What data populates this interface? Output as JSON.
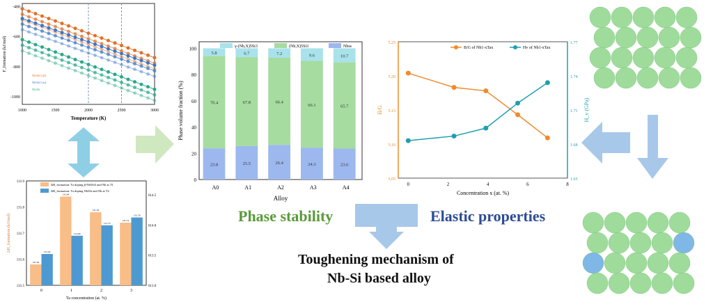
{
  "colors": {
    "green": "#5a9a3a",
    "blue": "#2e4c94",
    "arrow": "#a8c8ea",
    "atom": "#9fdc9c",
    "atom_blue": "#7fb7e6"
  },
  "labels": {
    "phase_stability": "Phase stability",
    "elastic_properties": "Elastic properties",
    "conclusion_line1": "Toughening mechanism of",
    "conclusion_line2": "Nb-Si based alloy"
  },
  "chart_data": [
    {
      "id": "formation-energy",
      "type": "line",
      "xlabel": "Temperature (K)",
      "ylabel": "F_formation (kJ/mol)",
      "xlim": [
        1000,
        3000
      ],
      "ylim": [
        -1050,
        -380
      ],
      "xticks": [
        1000,
        1500,
        2000,
        2500,
        3000
      ],
      "yticks": [
        -400,
        -600,
        -800,
        -1000
      ],
      "vlines": [
        2000,
        2500
      ],
      "series": [
        {
          "name": "Nb5Si3 (β)",
          "color": "#e0702a",
          "x": [
            1000,
            3000
          ],
          "y": [
            -415,
            -740
          ]
        },
        {
          "name": "Nb5Si3 (α)",
          "color": "#3a78c8",
          "x": [
            1000,
            3000
          ],
          "y": [
            -480,
            -790
          ]
        },
        {
          "name": "Nb3Si",
          "color": "#2aa88a",
          "x": [
            1000,
            3000
          ],
          "y": [
            -620,
            -950
          ]
        }
      ]
    },
    {
      "id": "formation-enthalpy-bars",
      "type": "bar",
      "xlabel": "Ta concentration (at. %)",
      "ylabel": "ΔH_formation (kJ/mol)",
      "categories": [
        "0",
        "1",
        "2",
        "3"
      ],
      "ylim": [
        131.5,
        131.9
      ],
      "yticks": [
        131.5,
        131.6,
        131.7,
        131.8,
        131.9
      ],
      "right_yticks": [
        "613.0",
        "613.5",
        "614.0",
        "614.5"
      ],
      "series": [
        {
          "name": "ΔH_formation: Ta doping β-Nb5Si3 and Nb at T1",
          "color": "#f9bd87",
          "values": [
            131.58,
            131.84,
            131.78,
            131.74
          ]
        },
        {
          "name": "ΔH_formation: Ta doping Nb3Si and Nb at T2",
          "color": "#4d9ad2",
          "values": [
            131.62,
            131.69,
            131.73,
            131.76
          ]
        }
      ]
    },
    {
      "id": "phase-fraction",
      "type": "bar",
      "stacked": true,
      "xlabel": "Alloy",
      "ylabel": "Phase volume fraction (%)",
      "categories": [
        "A0",
        "A1",
        "A2",
        "A3",
        "A4"
      ],
      "ylim": [
        0,
        105
      ],
      "yticks": [
        0,
        20,
        40,
        60,
        80,
        100
      ],
      "series": [
        {
          "name": "Nbss",
          "color": "#9db8ee",
          "values": [
            23.8,
            25.5,
            26.4,
            24.3,
            23.6
          ]
        },
        {
          "name": "(Nb,X)5Si3",
          "color": "#a6dca0",
          "values": [
            70.4,
            67.8,
            66.4,
            66.1,
            65.7
          ]
        },
        {
          "name": "γ-(Nb,X)5Si3",
          "color": "#a9e2ea",
          "values": [
            5.8,
            6.7,
            7.2,
            9.6,
            10.7
          ]
        }
      ]
    },
    {
      "id": "elastic",
      "type": "line",
      "xlabel": "Concentration x (at. %)",
      "ylabel": "B/G",
      "ylabel_right": "H_v (GPa)",
      "xlim": [
        -0.5,
        8
      ],
      "ylim": [
        5.05,
        5.25
      ],
      "ylim_right": [
        1.65,
        1.77
      ],
      "xticks": [
        0,
        2,
        4,
        6,
        8
      ],
      "yticks": [
        5.05,
        5.1,
        5.15,
        5.2,
        5.25
      ],
      "yticks_right": [
        1.65,
        1.68,
        1.71,
        1.74,
        1.77
      ],
      "series": [
        {
          "name": "B/G of Nb1-xTax",
          "color": "#f08a2c",
          "axis": "left",
          "x": [
            0,
            2.3,
            3.9,
            5.5,
            7.0
          ],
          "y": [
            5.204,
            5.183,
            5.178,
            5.143,
            5.109
          ]
        },
        {
          "name": "Hv of Nb1-xTax",
          "color": "#1f9fb0",
          "axis": "right",
          "x": [
            0,
            2.3,
            3.9,
            5.5,
            7.0
          ],
          "y": [
            1.683,
            1.687,
            1.694,
            1.716,
            1.734
          ]
        }
      ]
    }
  ]
}
